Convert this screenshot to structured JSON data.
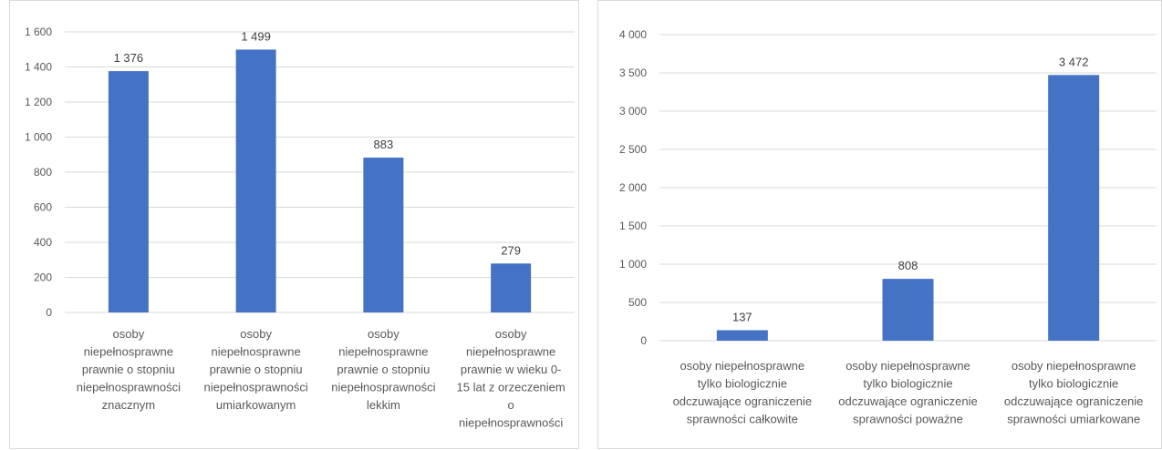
{
  "charts": [
    {
      "chart_data": {
        "type": "bar",
        "categories": [
          [
            "osoby",
            "niepełnosprawne",
            "prawnie o stopniu",
            "niepełnosprawności",
            "znacznym"
          ],
          [
            "osoby",
            "niepełnosprawne",
            "prawnie o stopniu",
            "niepełnosprawności",
            "umiarkowanym"
          ],
          [
            "osoby",
            "niepełnosprawne",
            "prawnie o stopniu",
            "niepełnosprawności",
            "lekkim"
          ],
          [
            "osoby",
            "niepełnosprawne",
            "prawnie w wieku 0-",
            "15 lat z orzeczeniem",
            "o",
            "niepełnosprawności"
          ]
        ],
        "values": [
          1376,
          1499,
          883,
          279
        ],
        "value_labels": [
          "1 376",
          "1 499",
          "883",
          "279"
        ],
        "yticks": [
          0,
          200,
          400,
          600,
          800,
          1000,
          1200,
          1400,
          1600
        ],
        "ytick_labels": [
          "0",
          "200",
          "400",
          "600",
          "800",
          "1 000",
          "1 200",
          "1 400",
          "1 600"
        ],
        "ylim": [
          0,
          1600
        ],
        "grid": true,
        "bar_color": "#4472C4"
      }
    },
    {
      "chart_data": {
        "type": "bar",
        "categories": [
          [
            "osoby niepełnosprawne",
            "tylko biologicznie",
            "odczuwające ograniczenie",
            "sprawności całkowite"
          ],
          [
            "osoby niepełnosprawne",
            "tylko biologicznie",
            "odczuwające ograniczenie",
            "sprawności poważne"
          ],
          [
            "osoby niepełnosprawne",
            "tylko biologicznie",
            "odczuwające ograniczenie",
            "sprawności umiarkowane"
          ]
        ],
        "values": [
          137,
          808,
          3472
        ],
        "value_labels": [
          "137",
          "808",
          "3 472"
        ],
        "yticks": [
          0,
          500,
          1000,
          1500,
          2000,
          2500,
          3000,
          3500,
          4000
        ],
        "ytick_labels": [
          "0",
          "500",
          "1 000",
          "1 500",
          "2 000",
          "2 500",
          "3 000",
          "3 500",
          "4 000"
        ],
        "ylim": [
          0,
          4000
        ],
        "grid": true,
        "bar_color": "#4472C4"
      }
    }
  ]
}
